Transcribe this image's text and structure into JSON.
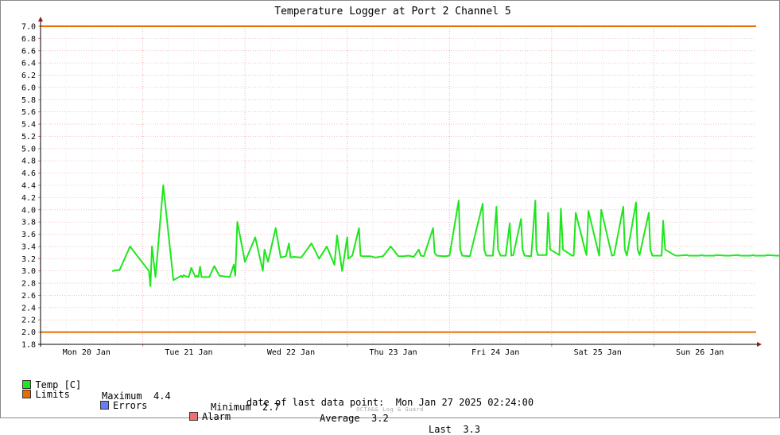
{
  "chart_data": {
    "type": "line",
    "title": "Temperature Logger at Port 2 Channel 5",
    "ylim": [
      1.8,
      7.0
    ],
    "y_ticks": [
      "7.0",
      "6.8",
      "6.6",
      "6.4",
      "6.2",
      "6.0",
      "5.8",
      "5.6",
      "5.4",
      "5.2",
      "5.0",
      "4.8",
      "4.6",
      "4.4",
      "4.2",
      "4.0",
      "3.8",
      "3.6",
      "3.4",
      "3.2",
      "3.0",
      "2.8",
      "2.6",
      "2.4",
      "2.2",
      "2.0",
      "1.8"
    ],
    "x_ticks": [
      "Mon 20 Jan",
      "Tue 21 Jan",
      "Wed 22 Jan",
      "Thu 23 Jan",
      "Fri 24 Jan",
      "Sat 25 Jan",
      "Sun 26 Jan"
    ],
    "grid": true,
    "limits": {
      "upper": 7.0,
      "lower": 2.0,
      "color": "#e66e00"
    },
    "series": [
      {
        "name": "Temp [C]",
        "color": "#1ee61e",
        "x_days": [
          0.0,
          0.15,
          0.35,
          0.72,
          0.75,
          0.78,
          0.85,
          1.0,
          1.2,
          1.35,
          1.38,
          1.4,
          1.45,
          1.5,
          1.55,
          1.63,
          1.66,
          1.69,
          1.72,
          1.75,
          1.9,
          2.0,
          2.1,
          2.3,
          2.38,
          2.41,
          2.45,
          2.6,
          2.8,
          2.95,
          2.98,
          3.05,
          3.2,
          3.3,
          3.4,
          3.46,
          3.49,
          3.55,
          3.7,
          3.9,
          4.05,
          4.2,
          4.35,
          4.4,
          4.5,
          4.6,
          4.62,
          4.7,
          4.83,
          4.86,
          4.9,
          5.05,
          5.15,
          5.3,
          5.45,
          5.6,
          5.65,
          5.7,
          5.8,
          5.9,
          6.0,
          6.04,
          6.1,
          6.28,
          6.31,
          6.35,
          6.5,
          6.6,
          6.78,
          6.81,
          6.85,
          7.0,
          7.25,
          7.28,
          7.32,
          7.45,
          7.52,
          7.55,
          7.6,
          7.7,
          7.78,
          7.81,
          7.85,
          8.0,
          8.03,
          8.07,
          8.2,
          8.28,
          8.3,
          8.33,
          8.5,
          8.53,
          8.57,
          8.75,
          8.78,
          8.82,
          9.0,
          9.03,
          9.07,
          9.25,
          9.28,
          9.32,
          9.5,
          9.53,
          9.57,
          9.75,
          9.78,
          9.82,
          10.0,
          10.03,
          10.07,
          10.25,
          10.28,
          10.32,
          10.5,
          10.53,
          10.57,
          10.75,
          10.78,
          10.82,
          11.0,
          11.03,
          11.07,
          11.25,
          11.28,
          11.32,
          11.5,
          11.53,
          11.57,
          11.75,
          11.78,
          11.82,
          12.0,
          12.03,
          12.07,
          12.25,
          12.28,
          12.32,
          12.5,
          12.53,
          12.57,
          12.75,
          12.78,
          12.82,
          13.0,
          13.03,
          13.07,
          13.25,
          13.28,
          13.32,
          13.5,
          13.53,
          13.57,
          13.75,
          13.78,
          13.82,
          14.0
        ],
        "values": [
          3.0,
          3.02,
          3.4,
          3.0,
          2.75,
          3.4,
          2.9,
          4.4,
          2.85,
          2.92,
          2.9,
          2.93,
          2.91,
          2.9,
          3.05,
          2.9,
          2.92,
          2.9,
          3.07,
          2.9,
          2.9,
          3.08,
          2.92,
          2.9,
          3.1,
          2.92,
          3.8,
          3.15,
          3.55,
          3.0,
          3.35,
          3.15,
          3.7,
          3.22,
          3.24,
          3.45,
          3.22,
          3.23,
          3.22,
          3.45,
          3.2,
          3.4,
          3.1,
          3.58,
          3.0,
          3.55,
          3.2,
          3.25,
          3.7,
          3.25,
          3.24,
          3.24,
          3.22,
          3.24,
          3.4,
          3.24,
          3.24,
          3.24,
          3.25,
          3.23,
          3.35,
          3.25,
          3.24,
          3.7,
          3.3,
          3.25,
          3.24,
          3.25,
          4.15,
          3.35,
          3.25,
          3.24,
          4.1,
          3.35,
          3.25,
          3.25,
          4.05,
          3.35,
          3.25,
          3.25,
          3.78,
          3.25,
          3.26,
          3.85,
          3.35,
          3.25,
          3.24,
          4.15,
          3.35,
          3.26,
          3.26,
          3.95,
          3.35,
          3.26,
          4.02,
          3.35,
          3.25,
          3.25,
          3.95,
          3.35,
          3.26,
          3.98,
          3.35,
          3.25,
          4.0,
          3.35,
          3.25,
          3.26,
          4.05,
          3.35,
          3.25,
          4.12,
          3.35,
          3.26,
          3.95,
          3.35,
          3.25,
          3.25,
          3.82,
          3.35,
          3.26,
          3.25,
          3.25,
          3.26,
          3.25,
          3.25,
          3.25,
          3.26,
          3.25,
          3.25,
          3.25,
          3.26,
          3.25,
          3.25,
          3.25,
          3.26,
          3.25,
          3.25,
          3.25,
          3.26,
          3.25,
          3.25,
          3.25,
          3.26,
          3.25,
          3.25,
          3.25,
          3.26,
          3.25,
          3.25,
          3.25,
          3.26,
          3.25,
          3.25,
          3.25,
          3.26,
          3.3
        ]
      }
    ]
  },
  "legend": {
    "temp_label": "Temp [C]",
    "max_label": "Maximum",
    "max_value": "4.4",
    "min_label": "Minimum",
    "min_value": "2.7",
    "avg_label": "Average",
    "avg_value": "3.2",
    "last_label": "Last",
    "last_value": "3.3",
    "limits_label": "Limits",
    "errors_label": "Errors",
    "alarm_label": "Alarm",
    "colors": {
      "temp": "#1ee61e",
      "limits": "#e66e00",
      "errors": "#6a7cf0",
      "alarm": "#f07070"
    }
  },
  "footer": {
    "last_point": "date of last data point:  Mon Jan 27 2025 02:24:00",
    "credit": "OCTA&& Log & Guard"
  }
}
